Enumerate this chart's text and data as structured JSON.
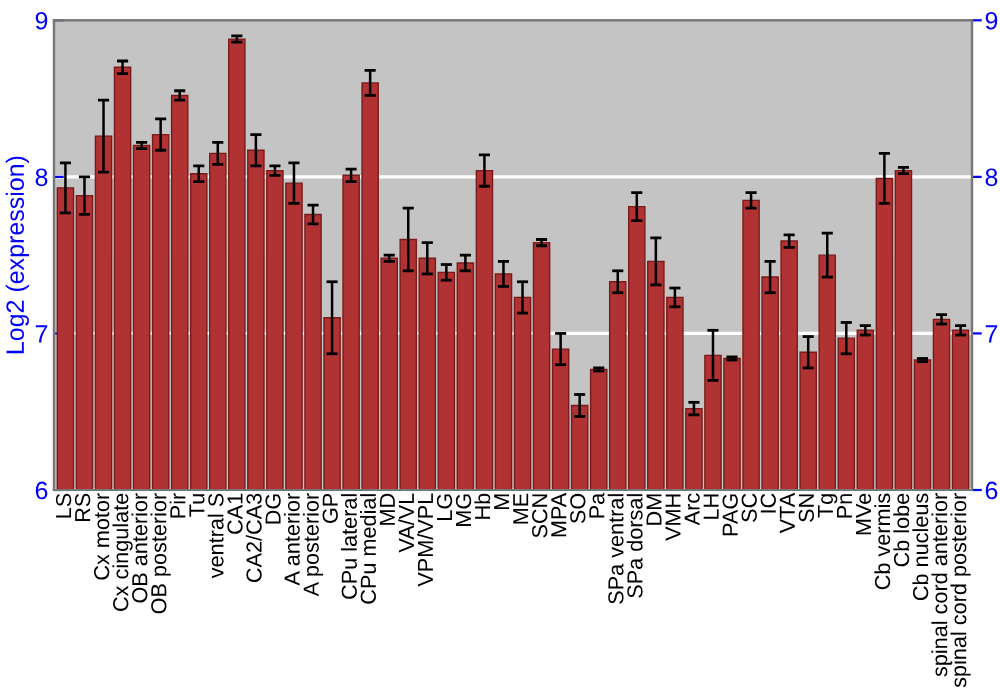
{
  "chart_data": {
    "type": "bar",
    "ylabel": "Log2 (expression)",
    "categories": [
      "LS",
      "RS",
      "Cx motor",
      "Cx cingulate",
      "OB anterior",
      "OB posterior",
      "Pir",
      "Tu",
      "ventral S",
      "CA1",
      "CA2/CA3",
      "DG",
      "A anterior",
      "A posterior",
      "GP",
      "CPu lateral",
      "CPu medial",
      "MD",
      "VA/VL",
      "VPM/VPL",
      "LG",
      "MG",
      "Hb",
      "M",
      "ME",
      "SCN",
      "MPA",
      "SO",
      "Pa",
      "SPa ventral",
      "SPa dorsal",
      "DM",
      "VMH",
      "Arc",
      "LH",
      "PAG",
      "SC",
      "IC",
      "VTA",
      "SN",
      "Tg",
      "Pn",
      "MVe",
      "Cb vermis",
      "Cb lobe",
      "Cb nucleus",
      "spinal cord anterior",
      "spinal cord posterior"
    ],
    "values": [
      7.93,
      7.88,
      8.26,
      8.7,
      8.2,
      8.27,
      8.52,
      8.02,
      8.15,
      8.88,
      8.17,
      8.04,
      7.96,
      7.76,
      7.1,
      8.01,
      8.6,
      7.48,
      7.6,
      7.48,
      7.39,
      7.45,
      8.04,
      7.38,
      7.23,
      7.58,
      6.9,
      6.54,
      6.77,
      7.33,
      7.81,
      7.46,
      7.23,
      6.52,
      6.86,
      6.84,
      7.85,
      7.36,
      7.59,
      6.88,
      7.5,
      6.97,
      7.02,
      7.99,
      8.04,
      6.83,
      7.09,
      7.02
    ],
    "errors": [
      0.16,
      0.12,
      0.23,
      0.04,
      0.02,
      0.1,
      0.03,
      0.05,
      0.07,
      0.02,
      0.1,
      0.03,
      0.13,
      0.06,
      0.23,
      0.04,
      0.08,
      0.02,
      0.2,
      0.1,
      0.05,
      0.05,
      0.1,
      0.08,
      0.1,
      0.02,
      0.1,
      0.07,
      0.01,
      0.07,
      0.09,
      0.15,
      0.06,
      0.04,
      0.16,
      0.01,
      0.05,
      0.1,
      0.04,
      0.1,
      0.14,
      0.1,
      0.03,
      0.16,
      0.02,
      0.01,
      0.03,
      0.03
    ],
    "color": "#b03232",
    "ylim": [
      6,
      9
    ],
    "yticks": [
      6,
      7,
      8,
      9
    ],
    "y2lim": [
      6,
      9
    ],
    "y2ticks": [
      6,
      7,
      8,
      9
    ],
    "grid": "y"
  }
}
